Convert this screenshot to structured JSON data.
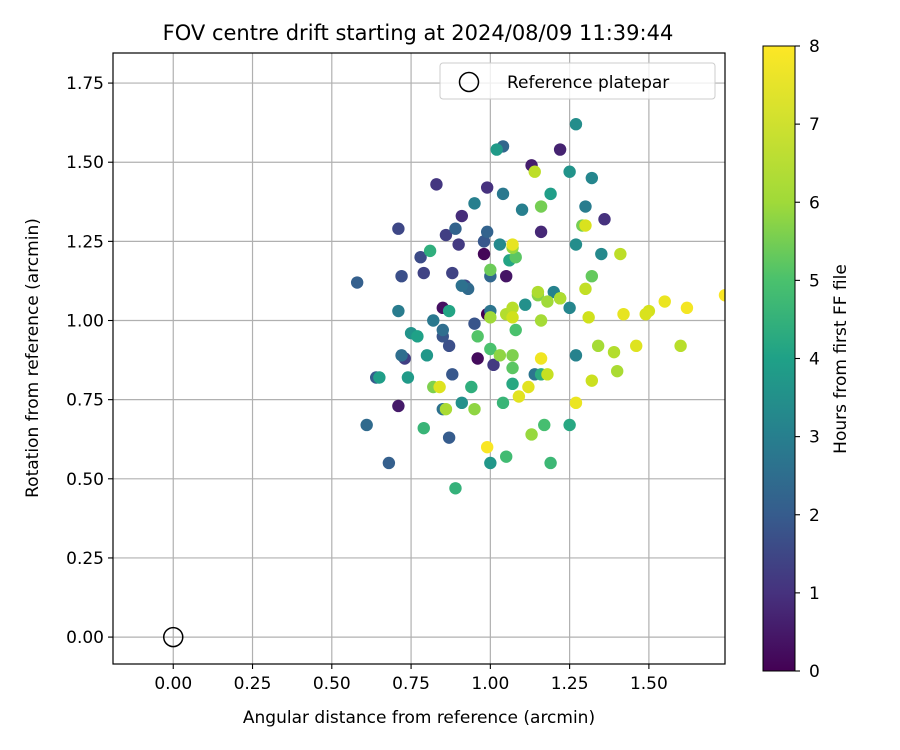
{
  "chart_data": {
    "type": "scatter",
    "title": "FOV centre drift starting at 2024/08/09 11:39:44",
    "xlabel": "Angular distance from reference (arcmin)",
    "ylabel": "Rotation from reference (arcmin)",
    "xlim": [
      -0.19,
      1.74
    ],
    "ylim": [
      -0.085,
      1.845
    ],
    "xticks": [
      "0.00",
      "0.25",
      "0.50",
      "0.75",
      "1.00",
      "1.25",
      "1.50"
    ],
    "yticks": [
      "0.00",
      "0.25",
      "0.50",
      "0.75",
      "1.00",
      "1.25",
      "1.50",
      "1.75"
    ],
    "grid": true,
    "legend": {
      "placement": "top-right",
      "entries": [
        "Reference platepar"
      ]
    },
    "reference_point": {
      "x": 0.0,
      "y": 0.0,
      "label": "Reference platepar"
    },
    "colorbar": {
      "label": "Hours from first FF file",
      "range": [
        0,
        8
      ],
      "ticks": [
        "0",
        "1",
        "2",
        "3",
        "4",
        "5",
        "6",
        "7",
        "8"
      ],
      "colormap": "viridis"
    },
    "points": [
      [
        0.99,
        1.02,
        0.0
      ],
      [
        0.98,
        1.21,
        0.1
      ],
      [
        0.96,
        0.88,
        0.2
      ],
      [
        0.85,
        1.04,
        0.3
      ],
      [
        1.05,
        1.14,
        0.4
      ],
      [
        0.71,
        0.73,
        0.5
      ],
      [
        1.13,
        1.49,
        0.6
      ],
      [
        1.22,
        1.54,
        0.7
      ],
      [
        1.16,
        1.28,
        0.8
      ],
      [
        0.91,
        1.33,
        0.9
      ],
      [
        0.99,
        1.42,
        1.0
      ],
      [
        1.36,
        1.32,
        1.0
      ],
      [
        0.83,
        1.43,
        1.1
      ],
      [
        1.01,
        0.86,
        1.2
      ],
      [
        0.9,
        1.24,
        1.2
      ],
      [
        0.73,
        0.88,
        1.3
      ],
      [
        0.86,
        1.27,
        1.3
      ],
      [
        0.79,
        1.15,
        1.4
      ],
      [
        0.88,
        1.15,
        1.4
      ],
      [
        0.92,
        1.11,
        1.5
      ],
      [
        0.71,
        1.29,
        1.5
      ],
      [
        0.78,
        1.2,
        1.6
      ],
      [
        0.87,
        0.92,
        1.7
      ],
      [
        0.72,
        1.14,
        1.7
      ],
      [
        0.95,
        0.99,
        1.8
      ],
      [
        0.85,
        0.95,
        1.8
      ],
      [
        0.88,
        0.83,
        1.9
      ],
      [
        0.98,
        1.25,
        1.9
      ],
      [
        0.87,
        0.63,
        2.0
      ],
      [
        0.64,
        0.82,
        2.0
      ],
      [
        0.68,
        0.55,
        2.1
      ],
      [
        0.58,
        1.12,
        2.1
      ],
      [
        0.89,
        1.29,
        2.2
      ],
      [
        0.99,
        1.28,
        2.2
      ],
      [
        1.0,
        1.14,
        2.3
      ],
      [
        1.04,
        1.55,
        2.3
      ],
      [
        0.93,
        1.1,
        2.4
      ],
      [
        0.61,
        0.67,
        2.4
      ],
      [
        0.85,
        0.97,
        2.5
      ],
      [
        0.72,
        0.89,
        2.5
      ],
      [
        0.91,
        1.11,
        2.6
      ],
      [
        0.85,
        0.72,
        2.6
      ],
      [
        1.14,
        0.83,
        2.7
      ],
      [
        1.0,
        1.03,
        2.7
      ],
      [
        0.82,
        1.0,
        2.8
      ],
      [
        1.04,
        1.4,
        2.8
      ],
      [
        0.71,
        1.03,
        2.9
      ],
      [
        1.3,
        1.36,
        2.9
      ],
      [
        0.95,
        1.37,
        3.0
      ],
      [
        1.1,
        1.35,
        3.0
      ],
      [
        1.2,
        1.09,
        3.1
      ],
      [
        1.27,
        0.89,
        3.1
      ],
      [
        1.25,
        1.04,
        3.2
      ],
      [
        1.32,
        1.45,
        3.2
      ],
      [
        1.03,
        1.24,
        3.3
      ],
      [
        1.35,
        1.21,
        3.3
      ],
      [
        1.27,
        1.24,
        3.4
      ],
      [
        1.27,
        1.62,
        3.4
      ],
      [
        1.11,
        1.05,
        3.5
      ],
      [
        0.91,
        0.74,
        3.5
      ],
      [
        1.25,
        1.47,
        3.6
      ],
      [
        0.75,
        0.96,
        3.6
      ],
      [
        1.0,
        0.55,
        3.7
      ],
      [
        0.8,
        0.89,
        3.7
      ],
      [
        0.74,
        0.82,
        3.8
      ],
      [
        1.02,
        1.54,
        3.8
      ],
      [
        0.65,
        0.82,
        3.9
      ],
      [
        1.19,
        1.4,
        3.9
      ],
      [
        0.77,
        0.95,
        4.0
      ],
      [
        1.06,
        1.19,
        4.1
      ],
      [
        0.87,
        1.03,
        4.1
      ],
      [
        1.25,
        0.67,
        4.2
      ],
      [
        1.07,
        0.8,
        4.2
      ],
      [
        1.16,
        0.83,
        4.3
      ],
      [
        0.81,
        1.22,
        4.4
      ],
      [
        0.94,
        0.79,
        4.4
      ],
      [
        0.89,
        0.47,
        4.5
      ],
      [
        0.79,
        0.66,
        4.6
      ],
      [
        1.04,
        0.74,
        4.6
      ],
      [
        1.19,
        0.55,
        4.7
      ],
      [
        1.05,
        0.57,
        4.8
      ],
      [
        1.17,
        0.67,
        4.9
      ],
      [
        1.0,
        0.91,
        5.0
      ],
      [
        1.08,
        0.97,
        5.0
      ],
      [
        0.96,
        0.95,
        5.1
      ],
      [
        1.07,
        0.85,
        5.2
      ],
      [
        1.08,
        1.2,
        5.2
      ],
      [
        1.22,
        1.07,
        5.3
      ],
      [
        1.32,
        1.14,
        5.3
      ],
      [
        1.0,
        1.16,
        5.4
      ],
      [
        1.16,
        1.36,
        5.5
      ],
      [
        1.29,
        1.3,
        5.5
      ],
      [
        1.07,
        0.89,
        5.6
      ],
      [
        0.82,
        0.79,
        5.6
      ],
      [
        1.15,
        1.08,
        5.7
      ],
      [
        1.03,
        0.89,
        5.8
      ],
      [
        0.95,
        0.72,
        5.8
      ],
      [
        1.07,
        1.23,
        5.9
      ],
      [
        1.13,
        0.64,
        5.9
      ],
      [
        1.18,
        1.06,
        6.0
      ],
      [
        1.0,
        1.01,
        6.0
      ],
      [
        1.34,
        0.92,
        6.1
      ],
      [
        1.16,
        1.0,
        6.1
      ],
      [
        1.4,
        0.84,
        6.2
      ],
      [
        0.86,
        0.72,
        6.2
      ],
      [
        1.15,
        1.09,
        6.3
      ],
      [
        1.22,
        1.07,
        6.3
      ],
      [
        1.05,
        1.02,
        6.4
      ],
      [
        1.39,
        0.9,
        6.4
      ],
      [
        1.07,
        1.04,
        6.5
      ],
      [
        1.6,
        0.92,
        6.5
      ],
      [
        1.14,
        1.47,
        6.6
      ],
      [
        1.41,
        1.21,
        6.6
      ],
      [
        1.3,
        1.1,
        6.7
      ],
      [
        1.18,
        0.83,
        6.8
      ],
      [
        1.32,
        0.81,
        6.9
      ],
      [
        1.07,
        1.01,
        7.0
      ],
      [
        1.31,
        1.01,
        7.0
      ],
      [
        1.5,
        1.03,
        7.1
      ],
      [
        1.49,
        1.02,
        7.2
      ],
      [
        1.3,
        1.3,
        7.2
      ],
      [
        0.84,
        0.79,
        7.3
      ],
      [
        1.46,
        0.92,
        7.3
      ],
      [
        1.09,
        0.76,
        7.4
      ],
      [
        1.12,
        0.79,
        7.4
      ],
      [
        1.07,
        1.24,
        7.5
      ],
      [
        1.42,
        1.02,
        7.5
      ],
      [
        1.27,
        0.74,
        7.6
      ],
      [
        1.55,
        1.06,
        7.6
      ],
      [
        1.16,
        0.88,
        7.7
      ],
      [
        1.62,
        1.04,
        7.8
      ],
      [
        0.99,
        0.6,
        7.9
      ],
      [
        1.74,
        1.08,
        7.9
      ]
    ]
  }
}
